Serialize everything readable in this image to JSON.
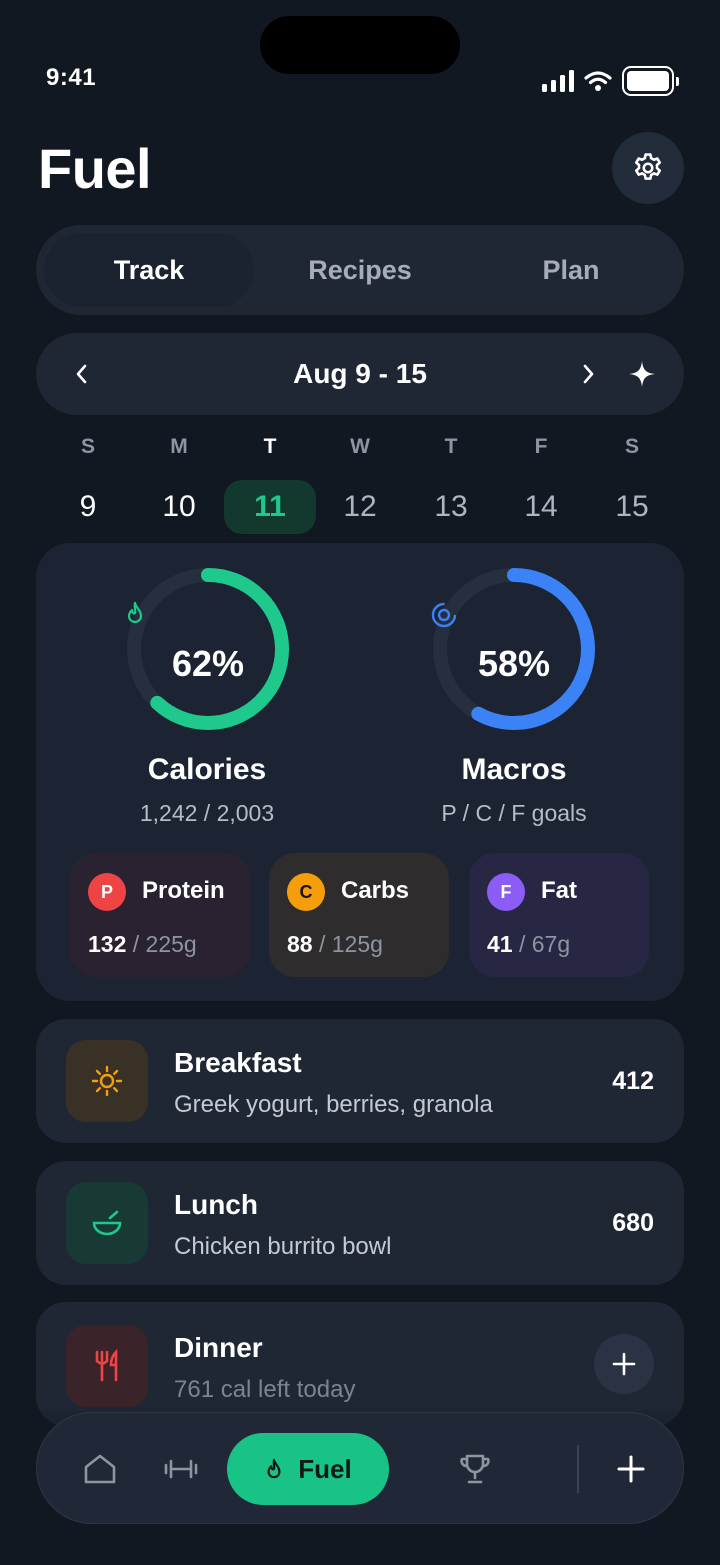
{
  "status_bar": {
    "time": "9:41"
  },
  "header": {
    "title": "Fuel"
  },
  "tabs": [
    {
      "label": "Track",
      "active": true
    },
    {
      "label": "Recipes",
      "active": false
    },
    {
      "label": "Plan",
      "active": false
    }
  ],
  "week": {
    "range": "Aug 9 - 15"
  },
  "days": [
    {
      "letter": "S",
      "num": "9",
      "state": "past"
    },
    {
      "letter": "M",
      "num": "10",
      "state": "past"
    },
    {
      "letter": "T",
      "num": "11",
      "state": "active"
    },
    {
      "letter": "W",
      "num": "12",
      "state": "future"
    },
    {
      "letter": "T",
      "num": "13",
      "state": "future"
    },
    {
      "letter": "F",
      "num": "14",
      "state": "future"
    },
    {
      "letter": "S",
      "num": "15",
      "state": "future"
    }
  ],
  "summary": {
    "calories": {
      "percent": 62,
      "percent_label": "62%",
      "title": "Calories",
      "sub": "1,242 / 2,003",
      "color": "#1fc98b"
    },
    "macros": {
      "percent": 58,
      "percent_label": "58%",
      "title": "Macros",
      "sub": "P / C / F goals",
      "color": "#3b82f6"
    },
    "macro_cards": [
      {
        "letter": "P",
        "name": "Protein",
        "current": "132",
        "goal": " / 225g",
        "badge_color": "#ef4444",
        "bg": "#2a2230"
      },
      {
        "letter": "C",
        "name": "Carbs",
        "current": "88",
        "goal": " / 125g",
        "badge_color": "#f59e0b",
        "bg": "#2e2c2c"
      },
      {
        "letter": "F",
        "name": "Fat",
        "current": "41",
        "goal": " / 67g",
        "badge_color": "#8b5cf6",
        "bg": "#272744"
      }
    ]
  },
  "meals": [
    {
      "title": "Breakfast",
      "desc": "Greek yogurt, berries, granola",
      "calories": "412",
      "icon": "sun-icon"
    },
    {
      "title": "Lunch",
      "desc": "Chicken burrito bowl",
      "calories": "680",
      "icon": "bowl-icon"
    },
    {
      "title": "Dinner",
      "desc": "761 cal left today",
      "icon": "utensils-icon"
    }
  ],
  "bottom_nav": {
    "active_label": "Fuel"
  }
}
